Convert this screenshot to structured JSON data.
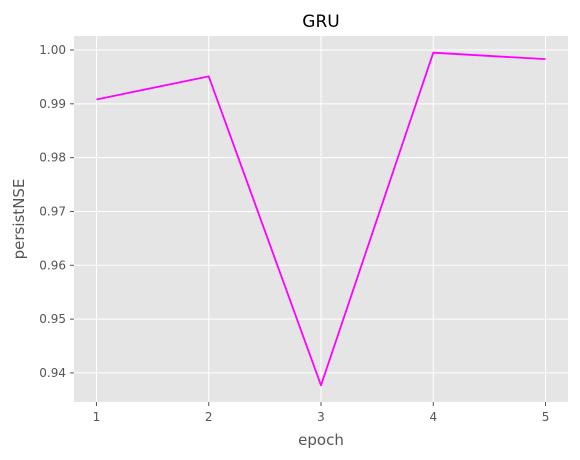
{
  "chart_data": {
    "type": "line",
    "title": "GRU",
    "xlabel": "epoch",
    "ylabel": "persistNSE",
    "x": [
      1,
      2,
      3,
      4,
      5
    ],
    "series": [
      {
        "values": [
          0.9908,
          0.9951,
          0.9377,
          0.9995,
          0.9983
        ],
        "color": "#ff00ff"
      }
    ],
    "xticks": [
      "1",
      "2",
      "3",
      "4",
      "5"
    ],
    "yticks": [
      "0.94",
      "0.95",
      "0.96",
      "0.97",
      "0.98",
      "0.99",
      "1.00"
    ],
    "ylim": [
      0.9346,
      1.0026
    ],
    "xlim": [
      0.8,
      5.2
    ],
    "grid": true,
    "background": "#e5e5e5",
    "grid_color": "#ffffff"
  }
}
